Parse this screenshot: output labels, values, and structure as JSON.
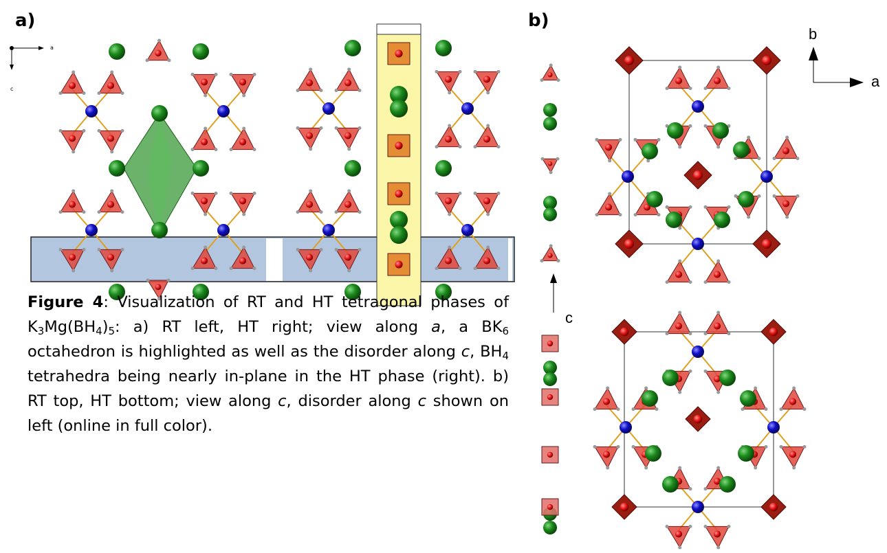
{
  "panel_a": {
    "label": "a)",
    "axis_x": "a",
    "axis_y": "c"
  },
  "panel_b": {
    "label": "b)",
    "axis_b": "b",
    "axis_a": "a",
    "axis_c": "c"
  },
  "caption": {
    "runs": [
      "Figure 4",
      ": Visualization of RT and HT tetragonal phases of K",
      "3",
      "Mg(BH",
      "4",
      ")",
      "5",
      ": a) RT left, HT right; view along ",
      "a",
      ", a BK",
      "6",
      " octahedron is highlighted as well as the disorder along ",
      "c",
      ", BH",
      "4",
      " tetrahedra being nearly in-plane in the HT phase (right). b) RT top, HT bottom; view along ",
      "c",
      ", disorder along ",
      "c",
      " shown on left (online in full color)."
    ]
  }
}
